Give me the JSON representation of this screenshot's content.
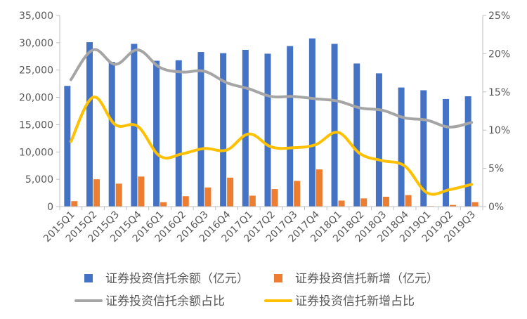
{
  "chart_data": {
    "type": "bar",
    "categories": [
      "2015Q1",
      "2015Q2",
      "2015Q3",
      "2015Q4",
      "2016Q1",
      "2016Q2",
      "2016Q3",
      "2016Q4",
      "2017Q1",
      "2017Q2",
      "2017Q3",
      "2017Q4",
      "2018Q1",
      "2018Q2",
      "2018Q3",
      "2018Q4",
      "2019Q1",
      "2019Q2",
      "2019Q3"
    ],
    "series": [
      {
        "name": "证券投资信托余额（亿元）",
        "type": "bar",
        "axis": "left",
        "color": "#4472C4",
        "values": [
          22100,
          30100,
          26500,
          29800,
          26700,
          26800,
          28300,
          28100,
          28700,
          28000,
          29400,
          30800,
          29800,
          26200,
          24400,
          21800,
          21300,
          19700,
          20200
        ]
      },
      {
        "name": "证券投资信托新增（亿元）",
        "type": "bar",
        "axis": "left",
        "color": "#ED7D31",
        "values": [
          1000,
          5000,
          4200,
          5500,
          800,
          1900,
          3500,
          5300,
          2000,
          3200,
          4700,
          6800,
          1100,
          1500,
          1800,
          2100,
          100,
          300,
          800
        ]
      },
      {
        "name": "证券投资信托余额占比",
        "type": "line",
        "axis": "right",
        "color": "#A5A5A5",
        "values": [
          0.166,
          0.205,
          0.186,
          0.205,
          0.182,
          0.176,
          0.177,
          0.162,
          0.154,
          0.144,
          0.144,
          0.141,
          0.138,
          0.129,
          0.126,
          0.116,
          0.113,
          0.104,
          0.11
        ]
      },
      {
        "name": "证券投资信托新增占比",
        "type": "line",
        "axis": "right",
        "color": "#FFC000",
        "values": [
          0.085,
          0.143,
          0.107,
          0.105,
          0.066,
          0.069,
          0.076,
          0.074,
          0.095,
          0.078,
          0.077,
          0.081,
          0.097,
          0.069,
          0.06,
          0.053,
          0.018,
          0.022,
          0.029
        ]
      }
    ],
    "y_left": {
      "min": 0,
      "max": 35000,
      "ticks": [
        "0",
        "5,000",
        "10,000",
        "15,000",
        "20,000",
        "25,000",
        "30,000",
        "35,000"
      ]
    },
    "y_right": {
      "min": 0,
      "max": 0.25,
      "ticks": [
        "0%",
        "5%",
        "10%",
        "15%",
        "20%",
        "25%"
      ]
    },
    "grid": false,
    "legend_position": "bottom"
  }
}
